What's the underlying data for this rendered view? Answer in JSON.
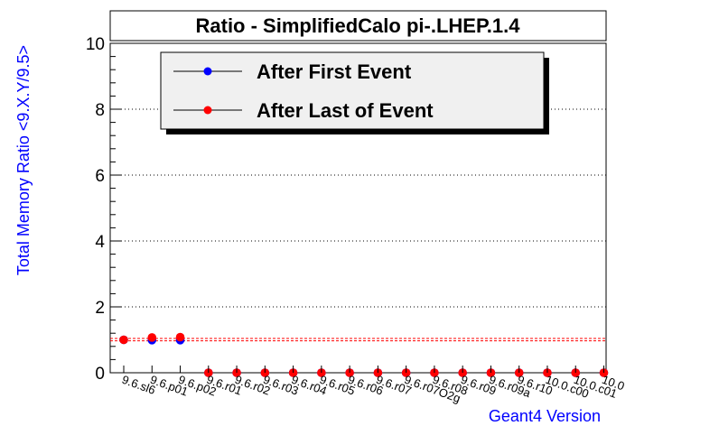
{
  "chart_data": {
    "type": "scatter",
    "title": "Ratio - SimplifiedCalo pi-.LHEP.1.4",
    "xlabel": "Geant4 Version",
    "ylabel": "Total Memory Ratio <9.X.Y/9.5>",
    "ylim": [
      0,
      10
    ],
    "yticks": [
      0,
      2,
      4,
      6,
      8,
      10
    ],
    "grid": "horizontal dotted",
    "legend_placement": "top-left",
    "categories": [
      "9.6.sl6",
      "9.6.p01",
      "9.6.p02",
      "9.6.r01",
      "9.6.r02",
      "9.6.r03",
      "9.6.r04",
      "9.6.r05",
      "9.6.r06",
      "9.6.r07",
      "9.6.r07O2g",
      "9.6.r08",
      "9.6.r09",
      "9.6.r09a",
      "9.6.r10",
      "10.0.c00",
      "10.0.c01",
      "10.0"
    ],
    "series": [
      {
        "name": "After First Event",
        "color": "#0000ff",
        "values": [
          1.0,
          0.99,
          0.99,
          0,
          0,
          0,
          0,
          0,
          0,
          0,
          0,
          0,
          0,
          0,
          0,
          0,
          0,
          0
        ]
      },
      {
        "name": "After Last of Event",
        "color": "#ff0000",
        "values": [
          1.0,
          1.07,
          1.08,
          0,
          0,
          0,
          0,
          0,
          0,
          0,
          0,
          0,
          0,
          0,
          0,
          0,
          0,
          0
        ]
      }
    ],
    "reference_lines": [
      0.97,
      1.04
    ],
    "reference_line_color": "#ff0000",
    "axis_title_color": "#0000ff"
  }
}
